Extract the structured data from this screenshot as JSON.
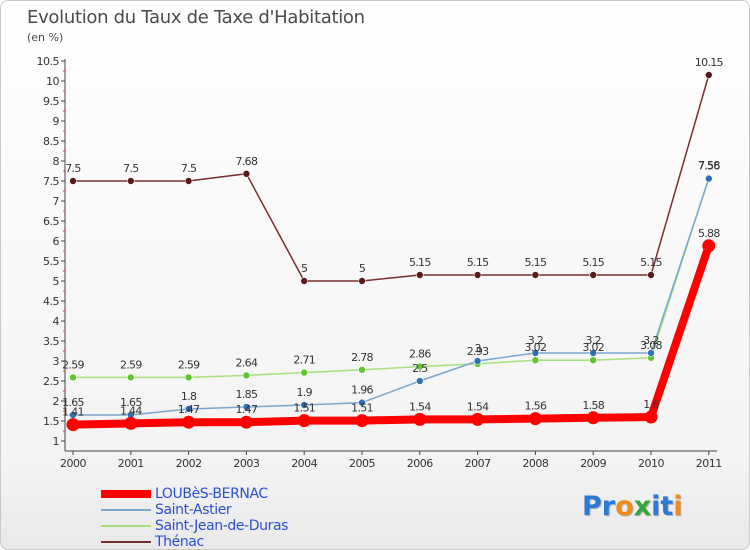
{
  "header": {
    "title": "Evolution du Taux de Taxe d'Habitation",
    "subtitle": "(en %)"
  },
  "logo": {
    "letters": [
      "P",
      "r",
      "o",
      "x",
      "i",
      "t",
      "i"
    ],
    "colors": [
      "#2a7bd8",
      "#2a7bd8",
      "#f08a1c",
      "#33a83a",
      "#2a7bd8",
      "#2a7bd8",
      "#f08a1c"
    ]
  },
  "chart_data": {
    "type": "line",
    "title": "Evolution du Taux de Taxe d'Habitation",
    "ylabel": "(en %)",
    "x": [
      "2000",
      "2001",
      "2002",
      "2003",
      "2004",
      "2005",
      "2006",
      "2007",
      "2008",
      "2009",
      "2010",
      "2011"
    ],
    "ylim": [
      1,
      10.5
    ],
    "yticks": [
      "1",
      "1.5",
      "2",
      "2.5",
      "3",
      "3.5",
      "4",
      "4.5",
      "5",
      "5.5",
      "6",
      "6.5",
      "7",
      "7.5",
      "8",
      "8.5",
      "9",
      "9.5",
      "10",
      "10.5"
    ],
    "grid": false,
    "legend_position": "bottom-left",
    "series": [
      {
        "name": "LOUBèS-BERNAC",
        "color": "#ff0000",
        "marker": "#ff0000",
        "values": [
          1.41,
          1.44,
          1.47,
          1.47,
          1.51,
          1.51,
          1.54,
          1.54,
          1.56,
          1.58,
          1.6,
          5.88
        ],
        "labels": [
          "1.41",
          "1.44",
          "1.47",
          "1.47",
          "1.51",
          "1.51",
          "1.54",
          "1.54",
          "1.56",
          "1.58",
          "1.6",
          "5.88"
        ]
      },
      {
        "name": "Saint-Astier",
        "color": "#7aa6cf",
        "marker": "#2f6fb5",
        "values": [
          1.65,
          1.65,
          1.8,
          1.85,
          1.9,
          1.96,
          2.5,
          3.0,
          3.2,
          3.2,
          3.2,
          7.56
        ],
        "labels": [
          "1.65",
          "1.65",
          "1.8",
          "1.85",
          "1.9",
          "1.96",
          "2.5",
          "3",
          "3.2",
          "3.2",
          "3.2",
          "7.56"
        ]
      },
      {
        "name": "Saint-Jean-de-Duras",
        "color": "#a6e07a",
        "marker": "#5fc52e",
        "values": [
          2.59,
          2.59,
          2.59,
          2.64,
          2.71,
          2.78,
          2.86,
          2.93,
          3.02,
          3.02,
          3.08,
          7.58
        ],
        "labels": [
          "2.59",
          "2.59",
          "2.59",
          "2.64",
          "2.71",
          "2.78",
          "2.86",
          "2.93",
          "3.02",
          "3.02",
          "3.08",
          "7.58"
        ]
      },
      {
        "name": "Thénac",
        "color": "#7a2d2d",
        "marker": "#5a1a1a",
        "values": [
          7.5,
          7.5,
          7.5,
          7.68,
          5.0,
          5.0,
          5.15,
          5.15,
          5.15,
          5.15,
          5.15,
          10.15
        ],
        "labels": [
          "7.5",
          "7.5",
          "7.5",
          "7.68",
          "5",
          "5",
          "5.15",
          "5.15",
          "5.15",
          "5.15",
          "5.15",
          "10.15"
        ]
      }
    ]
  }
}
